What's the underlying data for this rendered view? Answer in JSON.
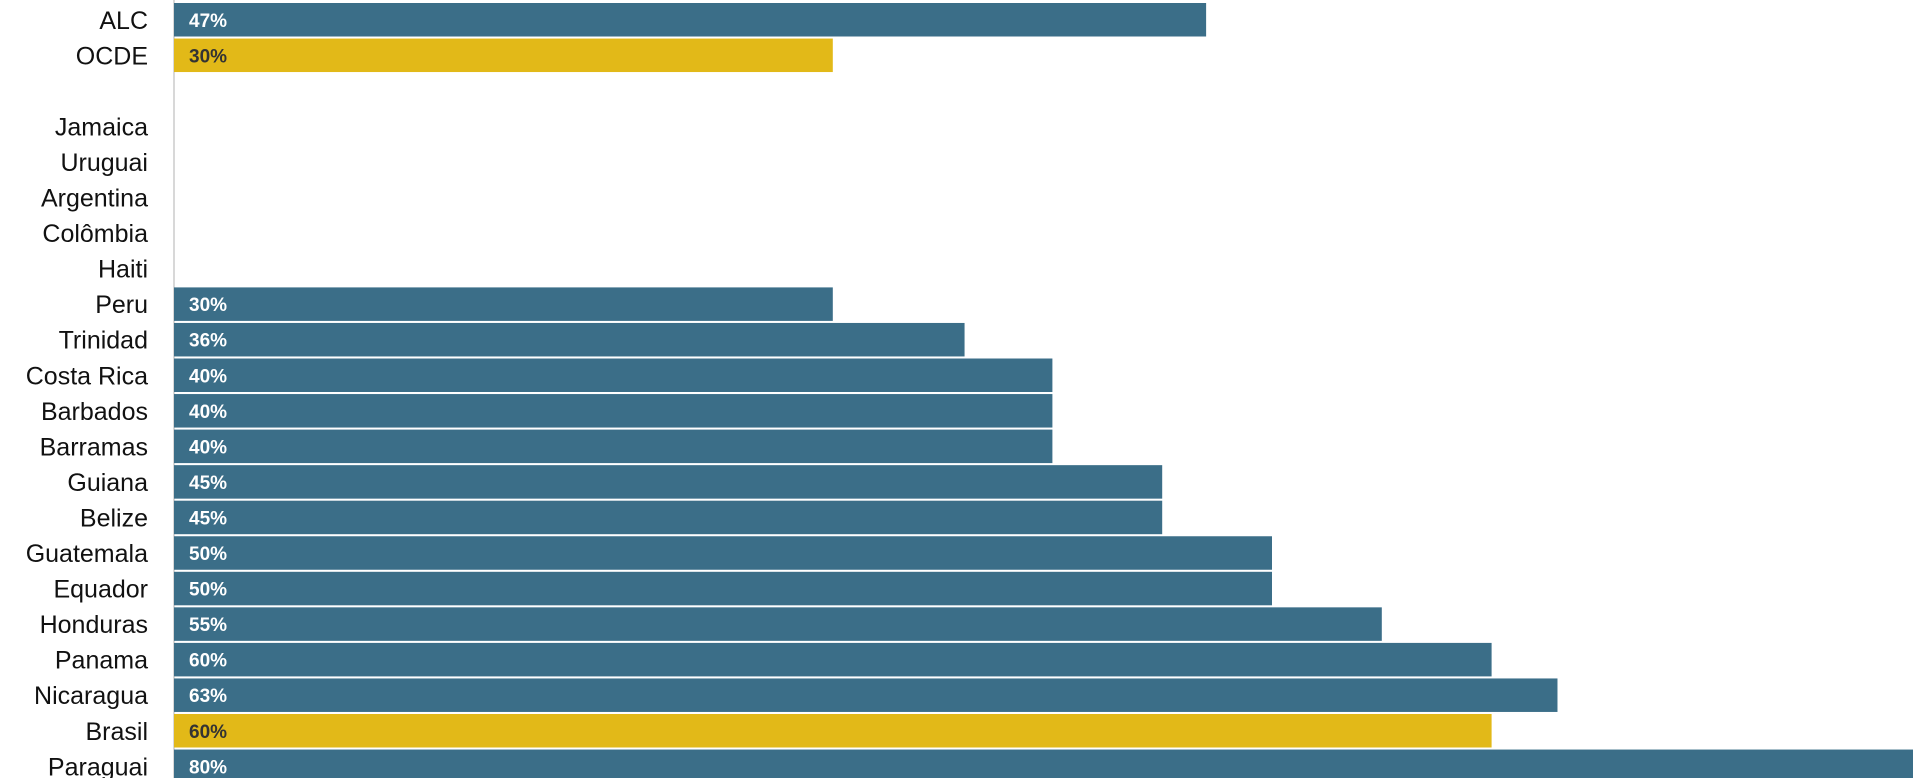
{
  "chart_data": {
    "type": "bar",
    "orientation": "horizontal",
    "categories": [
      "ALC",
      "OCDE",
      "",
      "Jamaica",
      "Uruguai",
      "Argentina",
      "Colômbia",
      "Haiti",
      "Peru",
      "Trinidad",
      "Costa Rica",
      "Barbados",
      "Barramas",
      "Guiana",
      "Belize",
      "Guatemala",
      "Equador",
      "Honduras",
      "Panama",
      "Nicaragua",
      "Brasil",
      "Paraguai"
    ],
    "values": [
      47,
      30,
      null,
      null,
      null,
      null,
      null,
      null,
      30,
      36,
      40,
      40,
      40,
      45,
      45,
      50,
      50,
      55,
      60,
      63,
      60,
      80
    ],
    "value_labels": [
      "47%",
      "30%",
      "",
      "",
      "",
      "",
      "",
      "",
      "30%",
      "36%",
      "40%",
      "40%",
      "40%",
      "45%",
      "45%",
      "50%",
      "50%",
      "55%",
      "60%",
      "63%",
      "60%",
      "80%"
    ],
    "highlight": [
      "OCDE",
      "Brasil"
    ],
    "xlim": [
      0,
      80
    ],
    "grid": false,
    "legend": "none",
    "title": "",
    "xlabel": "",
    "ylabel": ""
  },
  "colors": {
    "bar": "#3b6e88",
    "highlight": "#e2b918",
    "label_on_bar": "#ffffff",
    "label_on_highlight": "#333333",
    "axis": "#cccccc"
  }
}
